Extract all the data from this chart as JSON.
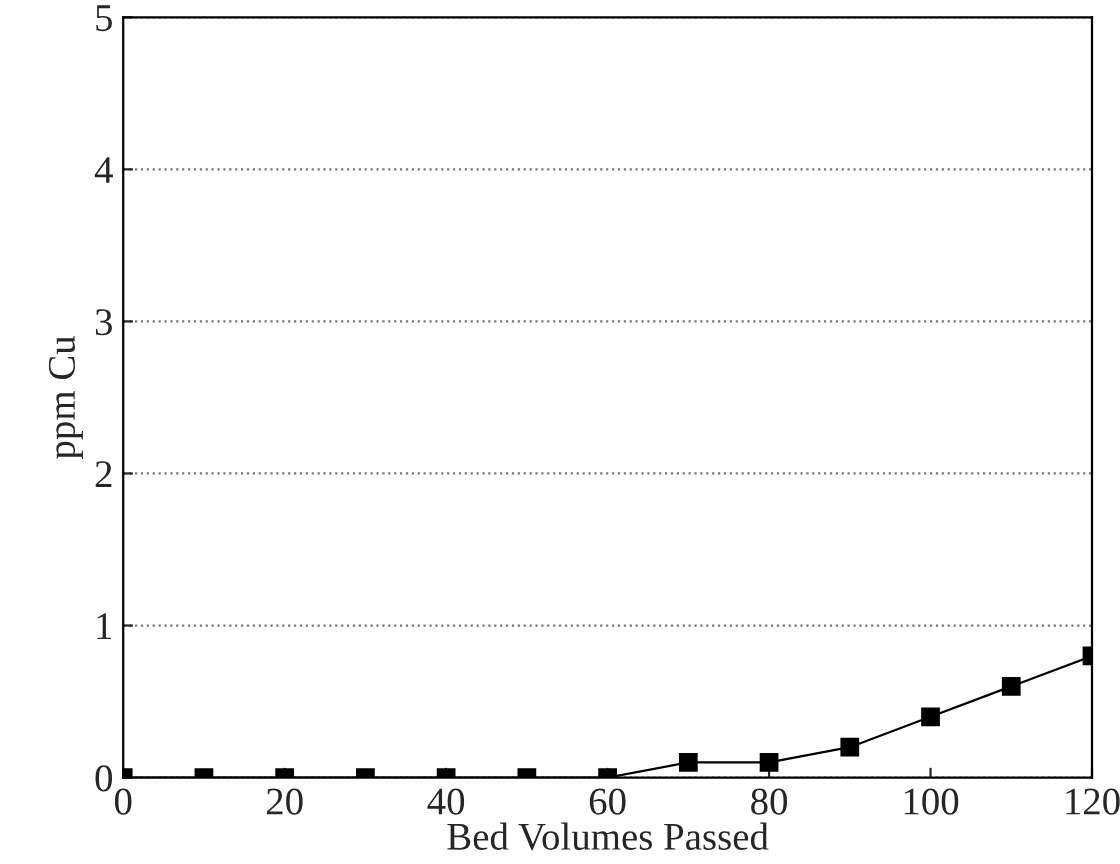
{
  "chart_data": {
    "type": "line",
    "xlabel": "Bed Volumes Passed",
    "ylabel": "ppm Cu",
    "x": [
      0,
      10,
      20,
      30,
      40,
      50,
      60,
      70,
      80,
      90,
      100,
      110,
      120
    ],
    "series": [
      {
        "color": "#000000",
        "values": [
          0,
          0,
          0,
          0,
          0,
          0,
          0,
          0.1,
          0.1,
          0.2,
          0.4,
          0.6,
          0.8
        ]
      }
    ],
    "xlim": [
      0,
      120
    ],
    "ylim": [
      0,
      5
    ],
    "xticks": [
      0,
      20,
      40,
      60,
      80,
      100,
      120
    ],
    "yticks": [
      0,
      1,
      2,
      3,
      4,
      5
    ],
    "grid": "y",
    "marker": "square",
    "line_style": "solid"
  }
}
